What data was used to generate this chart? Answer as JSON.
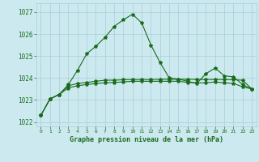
{
  "title": "Graphe pression niveau de la mer (hPa)",
  "xlim": [
    -0.5,
    23.5
  ],
  "ylim": [
    1021.8,
    1027.4
  ],
  "yticks": [
    1022,
    1023,
    1024,
    1025,
    1026,
    1027
  ],
  "xticks": [
    0,
    1,
    2,
    3,
    4,
    5,
    6,
    7,
    8,
    9,
    10,
    11,
    12,
    13,
    14,
    15,
    16,
    17,
    18,
    19,
    20,
    21,
    22,
    23
  ],
  "background_color": "#cce9f0",
  "grid_color": "#a8cdd8",
  "line_color": "#1a6b1a",
  "series1_x": [
    0,
    1,
    2,
    3,
    4,
    5,
    6,
    7,
    8,
    9,
    10,
    11,
    12,
    13,
    14,
    15,
    16,
    17,
    18,
    19,
    20,
    21,
    22,
    23
  ],
  "series1_y": [
    1022.3,
    1023.05,
    1023.25,
    1023.65,
    1023.75,
    1023.8,
    1023.85,
    1023.9,
    1023.9,
    1023.92,
    1023.93,
    1023.93,
    1023.93,
    1023.94,
    1023.94,
    1023.94,
    1023.94,
    1023.93,
    1023.93,
    1023.93,
    1023.93,
    1023.92,
    1023.9,
    1023.5
  ],
  "series2_x": [
    0,
    1,
    2,
    3,
    4,
    5,
    6,
    7,
    8,
    9,
    10,
    11,
    12,
    13,
    14,
    15,
    16,
    17,
    18,
    19,
    20,
    21,
    22,
    23
  ],
  "series2_y": [
    1022.3,
    1023.05,
    1023.25,
    1023.55,
    1023.65,
    1023.7,
    1023.75,
    1023.78,
    1023.8,
    1023.82,
    1023.85,
    1023.85,
    1023.85,
    1023.85,
    1023.85,
    1023.85,
    1023.8,
    1023.78,
    1023.78,
    1023.82,
    1023.78,
    1023.75,
    1023.6,
    1023.5
  ],
  "series3_x": [
    0,
    1,
    2,
    3,
    4,
    5,
    6,
    7,
    8,
    9,
    10,
    11,
    12,
    13,
    14,
    15,
    16,
    17,
    18,
    19,
    20,
    21,
    22,
    23
  ],
  "series3_y": [
    1022.3,
    1023.05,
    1023.25,
    1023.7,
    1024.35,
    1025.1,
    1025.45,
    1025.85,
    1026.35,
    1026.65,
    1026.9,
    1026.5,
    1025.5,
    1024.7,
    1024.0,
    1023.95,
    1023.85,
    1023.75,
    1024.2,
    1024.45,
    1024.1,
    1024.05,
    1023.7,
    1023.5
  ],
  "marker": "*",
  "marker_size": 3,
  "linewidth": 0.8
}
